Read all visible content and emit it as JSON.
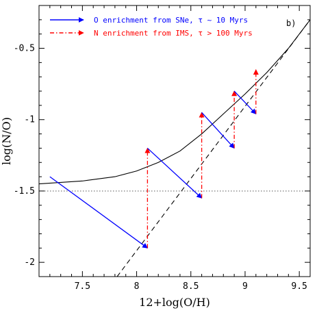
{
  "chart_data": {
    "type": "line",
    "panel_label": "b)",
    "xlabel": "12+log(O/H)",
    "ylabel": "log(N/O)",
    "xlim": [
      7.1,
      9.6
    ],
    "ylim": [
      -2.1,
      -0.2
    ],
    "xticks": [
      {
        "value": 7.5,
        "label": "7.5"
      },
      {
        "value": 8,
        "label": "8"
      },
      {
        "value": 8.5,
        "label": "8.5"
      },
      {
        "value": 9,
        "label": "9"
      },
      {
        "value": 9.5,
        "label": "9.5"
      }
    ],
    "yticks": [
      {
        "value": -0.5,
        "label": "-0.5"
      },
      {
        "value": -1,
        "label": "-1"
      },
      {
        "value": -1.5,
        "label": "-1.5"
      },
      {
        "value": -2,
        "label": "-2"
      }
    ],
    "legend": [
      {
        "label": "O enrichment from SNe, τ ~ 10 Myrs",
        "color": "#0000ff",
        "style": "solid-arrow"
      },
      {
        "label": "N enrichment from IMS, τ > 100 Myrs",
        "color": "#ff0000",
        "style": "dashdot-arrow"
      }
    ],
    "legend_position": "top-left",
    "series": [
      {
        "style": "solid",
        "color": "#000000",
        "x": [
          7.1,
          7.5,
          7.8,
          8.0,
          8.2,
          8.4,
          8.6,
          8.8,
          9.0,
          9.2,
          9.4,
          9.6
        ],
        "y": [
          -1.45,
          -1.43,
          -1.4,
          -1.36,
          -1.3,
          -1.22,
          -1.1,
          -0.96,
          -0.82,
          -0.67,
          -0.5,
          -0.3
        ]
      },
      {
        "style": "dashed",
        "color": "#000000",
        "x": [
          7.82,
          9.6
        ],
        "y": [
          -2.1,
          -0.3
        ]
      },
      {
        "style": "dotted",
        "color": "#555555",
        "x": [
          7.1,
          9.6
        ],
        "y": [
          -1.5,
          -1.5
        ]
      }
    ],
    "arrows": [
      {
        "kind": "O",
        "color": "#0000ff",
        "from": [
          7.2,
          -1.4
        ],
        "to": [
          8.1,
          -1.9
        ]
      },
      {
        "kind": "N",
        "color": "#ff0000",
        "from": [
          8.1,
          -1.9
        ],
        "to": [
          8.1,
          -1.2
        ]
      },
      {
        "kind": "O",
        "color": "#0000ff",
        "from": [
          8.1,
          -1.2
        ],
        "to": [
          8.6,
          -1.55
        ]
      },
      {
        "kind": "N",
        "color": "#ff0000",
        "from": [
          8.6,
          -1.55
        ],
        "to": [
          8.6,
          -0.95
        ]
      },
      {
        "kind": "O",
        "color": "#0000ff",
        "from": [
          8.6,
          -0.95
        ],
        "to": [
          8.9,
          -1.2
        ]
      },
      {
        "kind": "N",
        "color": "#ff0000",
        "from": [
          8.9,
          -1.2
        ],
        "to": [
          8.9,
          -0.8
        ]
      },
      {
        "kind": "O",
        "color": "#0000ff",
        "from": [
          8.9,
          -0.8
        ],
        "to": [
          9.1,
          -0.96
        ]
      },
      {
        "kind": "N",
        "color": "#ff0000",
        "from": [
          9.1,
          -0.96
        ],
        "to": [
          9.1,
          -0.65
        ]
      }
    ]
  }
}
